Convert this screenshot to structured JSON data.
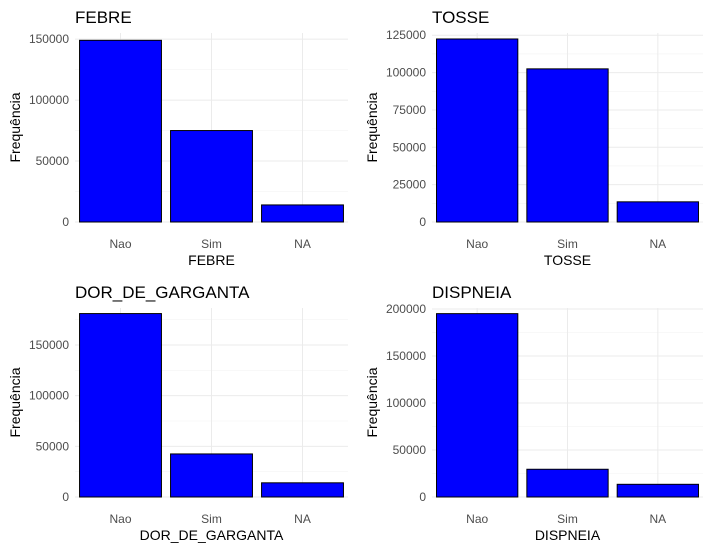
{
  "chart_data": [
    {
      "type": "bar",
      "title": "FEBRE",
      "xlabel": "FEBRE",
      "ylabel": "Frequência",
      "categories": [
        "Nao",
        "Sim",
        "NA"
      ],
      "values": [
        149000,
        75000,
        14000
      ],
      "ylim": [
        0,
        155000
      ],
      "yticks": [
        0,
        50000,
        100000,
        150000
      ],
      "yticklabels": [
        "0",
        "50000",
        "100000",
        "150000"
      ],
      "color": "#0000ff",
      "grid": true
    },
    {
      "type": "bar",
      "title": "TOSSE",
      "xlabel": "TOSSE",
      "ylabel": "Frequência",
      "categories": [
        "Nao",
        "Sim",
        "NA"
      ],
      "values": [
        122500,
        102500,
        13500
      ],
      "ylim": [
        0,
        126500
      ],
      "yticks": [
        0,
        25000,
        50000,
        75000,
        100000,
        125000
      ],
      "yticklabels": [
        "0",
        "25000",
        "50000",
        "75000",
        "100000",
        "125000"
      ],
      "color": "#0000ff",
      "grid": true
    },
    {
      "type": "bar",
      "title": "DOR_DE_GARGANTA",
      "xlabel": "DOR_DE_GARGANTA",
      "ylabel": "Frequência",
      "categories": [
        "Nao",
        "Sim",
        "NA"
      ],
      "values": [
        181000,
        42500,
        14000
      ],
      "ylim": [
        0,
        186500
      ],
      "yticks": [
        0,
        50000,
        100000,
        150000
      ],
      "yticklabels": [
        "0",
        "50000",
        "100000",
        "150000"
      ],
      "color": "#0000ff",
      "grid": true
    },
    {
      "type": "bar",
      "title": "DISPNEIA",
      "xlabel": "DISPNEIA",
      "ylabel": "Frequência",
      "categories": [
        "Nao",
        "Sim",
        "NA"
      ],
      "values": [
        195000,
        29500,
        13500
      ],
      "ylim": [
        0,
        201000
      ],
      "yticks": [
        0,
        50000,
        100000,
        150000,
        200000
      ],
      "yticklabels": [
        "0",
        "50000",
        "100000",
        "150000",
        "200000"
      ],
      "color": "#0000ff",
      "grid": true
    }
  ]
}
